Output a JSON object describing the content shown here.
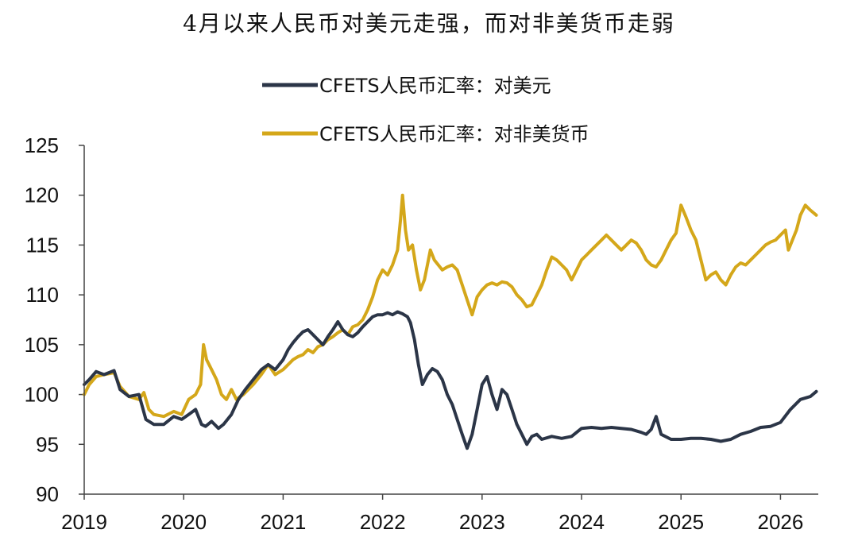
{
  "chart_data": {
    "type": "line",
    "title": "4月以来人民币对美元走强，而对非美货币走弱",
    "xlabel": "",
    "ylabel": "",
    "ylim": [
      90,
      125
    ],
    "yticks": [
      "90",
      "95",
      "100",
      "105",
      "110",
      "115",
      "120",
      "125"
    ],
    "xticks": [
      "2019",
      "2020",
      "2021",
      "2022",
      "2023",
      "2024",
      "2025",
      "2026"
    ],
    "xlim": [
      2019.0,
      2026.38
    ],
    "grid": false,
    "legend_position": "top-center",
    "series": [
      {
        "name": "CFETS人民币汇率：对美元",
        "color": "#2b3547",
        "x": [
          2019.0,
          2019.05,
          2019.12,
          2019.2,
          2019.3,
          2019.36,
          2019.45,
          2019.55,
          2019.62,
          2019.7,
          2019.8,
          2019.9,
          2019.98,
          2020.05,
          2020.12,
          2020.18,
          2020.22,
          2020.28,
          2020.35,
          2020.4,
          2020.48,
          2020.55,
          2020.62,
          2020.7,
          2020.78,
          2020.85,
          2020.92,
          2021.0,
          2021.05,
          2021.1,
          2021.15,
          2021.2,
          2021.25,
          2021.3,
          2021.35,
          2021.4,
          2021.45,
          2021.5,
          2021.55,
          2021.6,
          2021.65,
          2021.7,
          2021.75,
          2021.8,
          2021.85,
          2021.9,
          2021.95,
          2022.0,
          2022.05,
          2022.1,
          2022.15,
          2022.2,
          2022.25,
          2022.28,
          2022.32,
          2022.36,
          2022.4,
          2022.45,
          2022.5,
          2022.55,
          2022.6,
          2022.65,
          2022.7,
          2022.75,
          2022.8,
          2022.85,
          2022.9,
          2022.95,
          2023.0,
          2023.05,
          2023.1,
          2023.15,
          2023.2,
          2023.25,
          2023.3,
          2023.35,
          2023.4,
          2023.45,
          2023.5,
          2023.55,
          2023.6,
          2023.7,
          2023.8,
          2023.9,
          2024.0,
          2024.1,
          2024.2,
          2024.3,
          2024.4,
          2024.5,
          2024.6,
          2024.65,
          2024.7,
          2024.75,
          2024.8,
          2024.9,
          2025.0,
          2025.1,
          2025.2,
          2025.3,
          2025.4,
          2025.5,
          2025.6,
          2025.7,
          2025.8,
          2025.9,
          2026.0,
          2026.1,
          2026.2,
          2026.3,
          2026.36
        ],
        "values": [
          101.0,
          101.5,
          102.3,
          102.0,
          102.4,
          100.5,
          99.8,
          100.0,
          97.5,
          97.0,
          97.0,
          97.8,
          97.5,
          98.0,
          98.5,
          97.0,
          96.8,
          97.3,
          96.6,
          97.0,
          98.0,
          99.5,
          100.5,
          101.5,
          102.5,
          103.0,
          102.5,
          103.5,
          104.5,
          105.2,
          105.8,
          106.3,
          106.5,
          106.0,
          105.5,
          105.0,
          105.8,
          106.5,
          107.3,
          106.5,
          106.0,
          105.8,
          106.2,
          106.8,
          107.3,
          107.8,
          108.0,
          108.0,
          108.2,
          108.0,
          108.3,
          108.1,
          107.8,
          107.2,
          105.5,
          103.0,
          101.0,
          102.0,
          102.6,
          102.3,
          101.5,
          100.0,
          99.0,
          97.5,
          96.0,
          94.6,
          96.0,
          98.5,
          101.0,
          101.8,
          100.0,
          98.5,
          100.5,
          100.0,
          98.5,
          97.0,
          96.0,
          95.0,
          95.8,
          96.0,
          95.5,
          95.8,
          95.6,
          95.8,
          96.6,
          96.7,
          96.6,
          96.7,
          96.6,
          96.5,
          96.2,
          96.0,
          96.5,
          97.8,
          96.0,
          95.5,
          95.5,
          95.6,
          95.6,
          95.5,
          95.3,
          95.5,
          96.0,
          96.3,
          96.7,
          96.8,
          97.2,
          98.5,
          99.5,
          99.8,
          100.3
        ]
      },
      {
        "name": "CFETS人民币汇率：对非美货币",
        "color": "#d4a71a",
        "x": [
          2019.0,
          2019.05,
          2019.12,
          2019.2,
          2019.3,
          2019.36,
          2019.45,
          2019.55,
          2019.6,
          2019.65,
          2019.7,
          2019.8,
          2019.9,
          2019.98,
          2020.05,
          2020.12,
          2020.17,
          2020.2,
          2020.23,
          2020.28,
          2020.33,
          2020.38,
          2020.43,
          2020.48,
          2020.53,
          2020.6,
          2020.7,
          2020.78,
          2020.85,
          2020.92,
          2021.0,
          2021.05,
          2021.1,
          2021.15,
          2021.2,
          2021.25,
          2021.3,
          2021.35,
          2021.4,
          2021.45,
          2021.5,
          2021.55,
          2021.6,
          2021.65,
          2021.7,
          2021.75,
          2021.8,
          2021.85,
          2021.9,
          2021.95,
          2022.0,
          2022.05,
          2022.1,
          2022.15,
          2022.18,
          2022.2,
          2022.23,
          2022.26,
          2022.3,
          2022.34,
          2022.38,
          2022.42,
          2022.45,
          2022.48,
          2022.52,
          2022.56,
          2022.6,
          2022.65,
          2022.7,
          2022.75,
          2022.8,
          2022.85,
          2022.9,
          2022.95,
          2023.0,
          2023.05,
          2023.1,
          2023.15,
          2023.2,
          2023.25,
          2023.3,
          2023.35,
          2023.4,
          2023.45,
          2023.5,
          2023.55,
          2023.6,
          2023.65,
          2023.7,
          2023.75,
          2023.8,
          2023.85,
          2023.9,
          2023.95,
          2024.0,
          2024.05,
          2024.1,
          2024.15,
          2024.2,
          2024.25,
          2024.3,
          2024.35,
          2024.4,
          2024.45,
          2024.5,
          2024.55,
          2024.6,
          2024.65,
          2024.7,
          2024.75,
          2024.8,
          2024.85,
          2024.9,
          2024.95,
          2025.0,
          2025.05,
          2025.1,
          2025.15,
          2025.2,
          2025.25,
          2025.3,
          2025.35,
          2025.4,
          2025.45,
          2025.5,
          2025.55,
          2025.6,
          2025.65,
          2025.7,
          2025.75,
          2025.8,
          2025.85,
          2025.9,
          2025.95,
          2026.0,
          2026.05,
          2026.08,
          2026.12,
          2026.16,
          2026.2,
          2026.25,
          2026.3,
          2026.36
        ],
        "values": [
          100.0,
          101.0,
          101.8,
          102.0,
          102.2,
          100.8,
          99.8,
          99.5,
          100.2,
          98.5,
          98.0,
          97.8,
          98.3,
          98.0,
          99.5,
          100.0,
          101.0,
          105.0,
          103.5,
          102.5,
          101.5,
          100.0,
          99.5,
          100.5,
          99.5,
          100.0,
          101.0,
          102.0,
          103.0,
          102.0,
          102.5,
          103.0,
          103.5,
          103.8,
          104.0,
          104.5,
          104.2,
          104.8,
          105.0,
          105.5,
          105.8,
          106.2,
          106.5,
          106.0,
          106.8,
          107.0,
          107.5,
          108.5,
          109.8,
          111.5,
          112.5,
          112.0,
          113.0,
          114.5,
          117.5,
          120.0,
          116.5,
          114.5,
          115.0,
          112.5,
          110.5,
          111.5,
          113.0,
          114.5,
          113.5,
          113.0,
          112.5,
          112.8,
          113.0,
          112.5,
          111.0,
          109.5,
          108.0,
          109.8,
          110.5,
          111.0,
          111.2,
          111.0,
          111.3,
          111.2,
          110.8,
          110.0,
          109.5,
          108.8,
          109.0,
          110.0,
          111.0,
          112.5,
          113.8,
          113.5,
          113.0,
          112.5,
          111.5,
          112.5,
          113.5,
          114.0,
          114.5,
          115.0,
          115.5,
          116.0,
          115.5,
          115.0,
          114.5,
          115.0,
          115.5,
          115.2,
          114.5,
          113.5,
          113.0,
          112.8,
          113.5,
          114.5,
          115.5,
          116.2,
          119.0,
          117.8,
          116.5,
          115.5,
          113.5,
          111.5,
          112.0,
          112.3,
          111.5,
          111.0,
          112.0,
          112.8,
          113.2,
          113.0,
          113.5,
          114.0,
          114.5,
          115.0,
          115.3,
          115.5,
          116.0,
          116.5,
          114.5,
          115.5,
          116.5,
          118.0,
          119.0,
          118.5,
          118.0
        ]
      }
    ]
  }
}
